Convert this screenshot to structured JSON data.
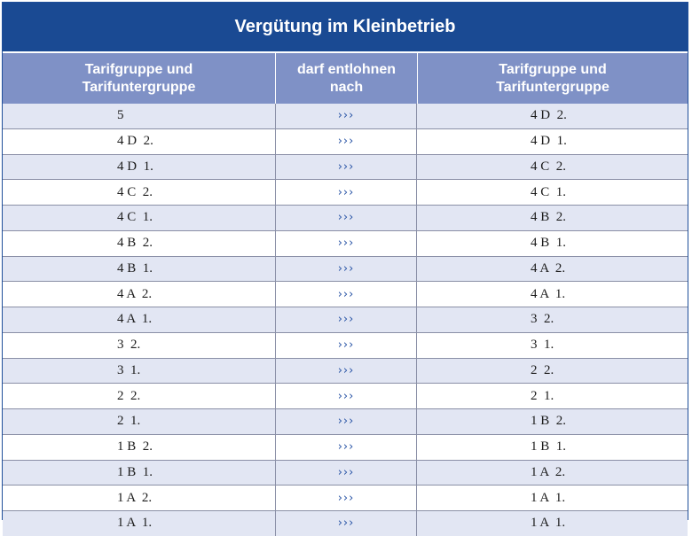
{
  "title": "Vergütung im Kleinbetrieb",
  "headers": [
    "Tarifgruppe und\nTarifuntergruppe",
    "darf entlohnen\nnach",
    "Tarifgruppe und\nTarifuntergruppe"
  ],
  "arrow": "›››",
  "rows": [
    {
      "from": "5",
      "to": "4 D  2."
    },
    {
      "from": "4 D  2.",
      "to": "4 D  1."
    },
    {
      "from": "4 D  1.",
      "to": "4 C  2."
    },
    {
      "from": "4 C  2.",
      "to": "4 C  1."
    },
    {
      "from": "4 C  1.",
      "to": "4 B  2."
    },
    {
      "from": "4 B  2.",
      "to": "4 B  1."
    },
    {
      "from": "4 B  1.",
      "to": "4 A  2."
    },
    {
      "from": "4 A  2.",
      "to": "4 A  1."
    },
    {
      "from": "4 A  1.",
      "to": "3  2."
    },
    {
      "from": "3  2.",
      "to": "3  1."
    },
    {
      "from": "3  1.",
      "to": "2  2."
    },
    {
      "from": "2  2.",
      "to": "2  1."
    },
    {
      "from": "2  1.",
      "to": "1 B  2."
    },
    {
      "from": "1 B  2.",
      "to": "1 B  1."
    },
    {
      "from": "1 B  1.",
      "to": "1 A  2."
    },
    {
      "from": "1 A  2.",
      "to": "1 A  1."
    },
    {
      "from": "1 A  1.",
      "to": "1 A  1."
    }
  ]
}
